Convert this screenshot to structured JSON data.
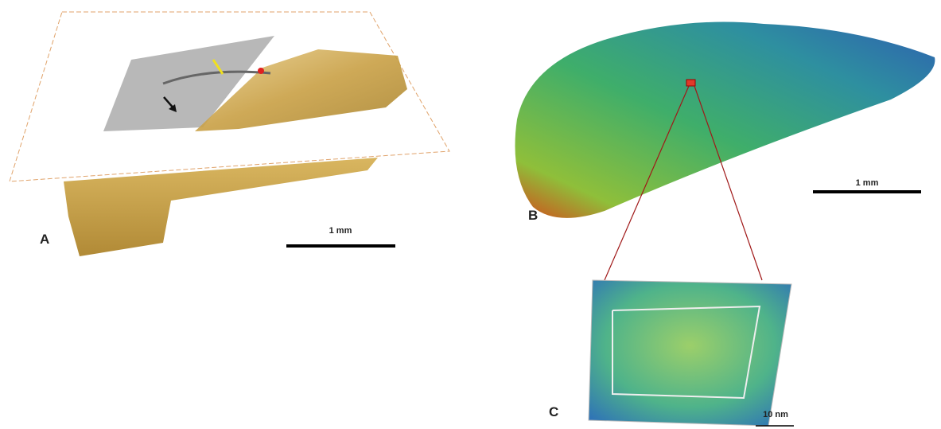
{
  "panels": [
    {
      "label": "A",
      "scale_bar": "1 mm"
    },
    {
      "label": "B",
      "scale_bar": "1 mm"
    },
    {
      "label": "C",
      "scale_bar": "10 nm"
    }
  ]
}
